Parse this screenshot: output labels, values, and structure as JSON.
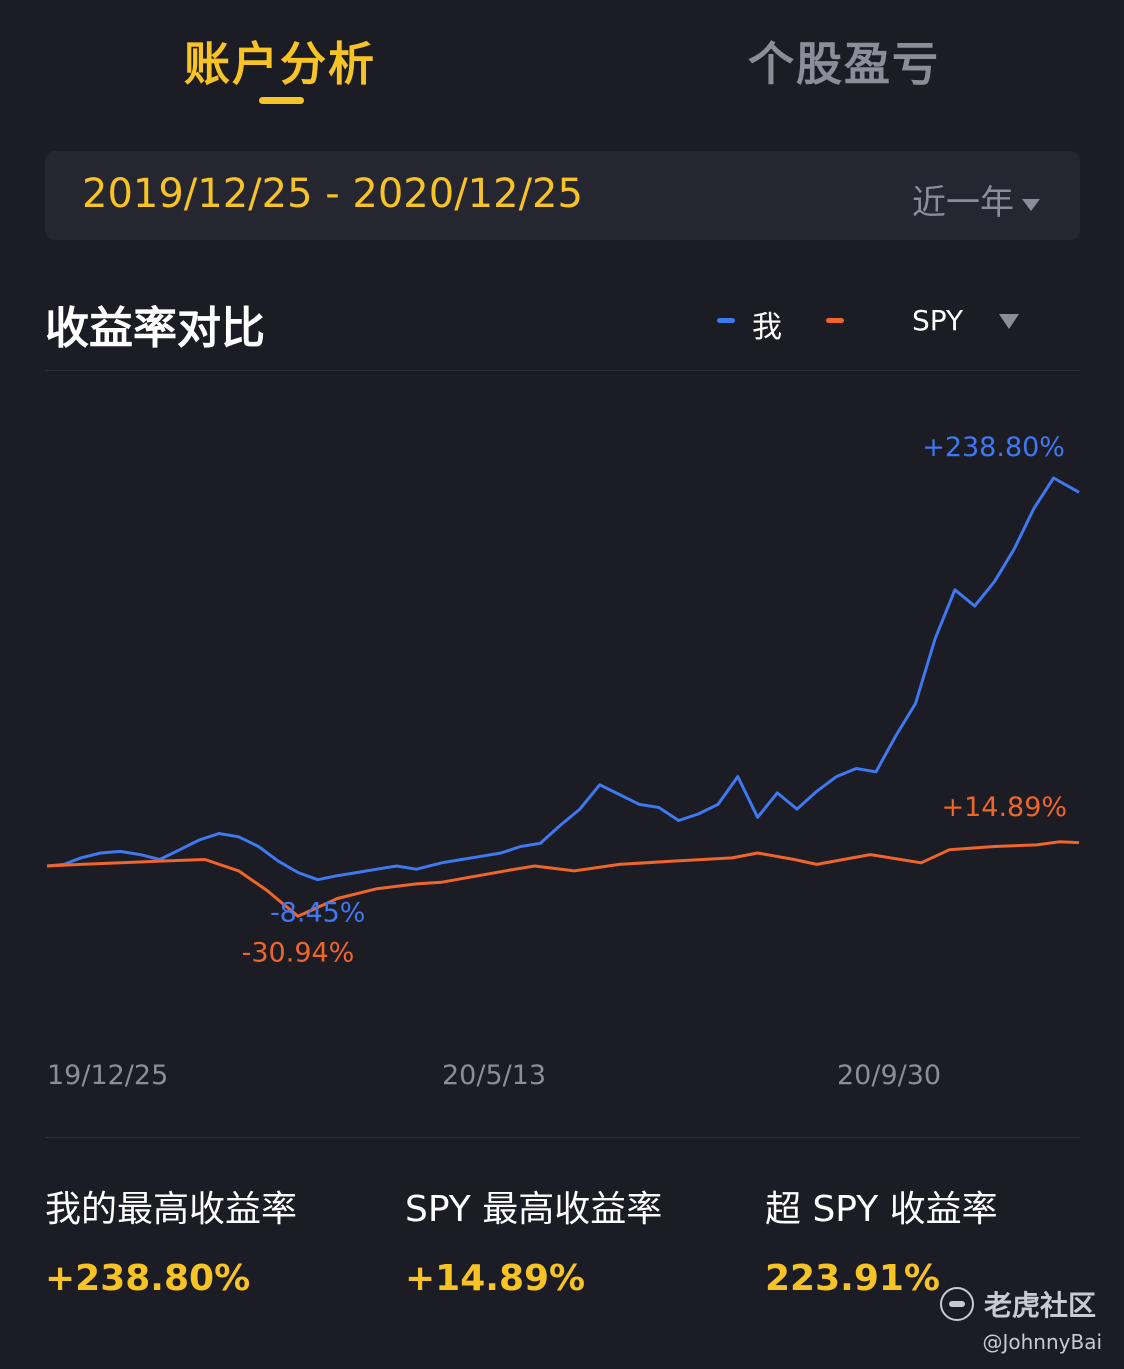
{
  "tabs": [
    {
      "label": "账户分析",
      "active": true
    },
    {
      "label": "个股盈亏",
      "active": false
    }
  ],
  "date_range": "2019/12/25 - 2020/12/25",
  "period": {
    "label": "近一年",
    "icon": "caret-down-icon"
  },
  "section_title": "收益率对比",
  "legend": {
    "me": {
      "label": "我",
      "color": "#3f78f0"
    },
    "spy": {
      "label": "SPY",
      "color": "#f0652a",
      "icon": "caret-down-icon"
    }
  },
  "colors": {
    "accent": "#f7c325",
    "me": "#3f78f0",
    "spy": "#f0652a",
    "muted": "#8b8d98"
  },
  "chart_data": {
    "type": "line",
    "x_range": [
      "2019-12-25",
      "2020-12-25"
    ],
    "ylim": [
      -35,
      260
    ],
    "grid": false,
    "x_ticks": [
      {
        "date": "2019-12-25",
        "label": "19/12/25"
      },
      {
        "date": "2020-05-13",
        "label": "20/5/13"
      },
      {
        "date": "2020-09-30",
        "label": "20/9/30"
      }
    ],
    "series": [
      {
        "name": "我",
        "color": "#3f78f0",
        "points": [
          [
            "2019-12-25",
            0
          ],
          [
            "2019-12-31",
            1
          ],
          [
            "2020-01-06",
            5
          ],
          [
            "2020-01-13",
            8
          ],
          [
            "2020-01-20",
            9
          ],
          [
            "2020-01-27",
            7
          ],
          [
            "2020-02-03",
            4
          ],
          [
            "2020-02-10",
            10
          ],
          [
            "2020-02-17",
            16
          ],
          [
            "2020-02-24",
            20
          ],
          [
            "2020-03-02",
            18
          ],
          [
            "2020-03-09",
            12
          ],
          [
            "2020-03-16",
            3
          ],
          [
            "2020-03-23",
            -4
          ],
          [
            "2020-03-30",
            -8.45
          ],
          [
            "2020-04-06",
            -6
          ],
          [
            "2020-04-13",
            -4
          ],
          [
            "2020-04-20",
            -2
          ],
          [
            "2020-04-27",
            0
          ],
          [
            "2020-05-04",
            -2
          ],
          [
            "2020-05-13",
            2
          ],
          [
            "2020-05-20",
            4
          ],
          [
            "2020-05-27",
            6
          ],
          [
            "2020-06-03",
            8
          ],
          [
            "2020-06-10",
            12
          ],
          [
            "2020-06-17",
            14
          ],
          [
            "2020-06-24",
            25
          ],
          [
            "2020-07-01",
            35
          ],
          [
            "2020-07-08",
            50
          ],
          [
            "2020-07-15",
            44
          ],
          [
            "2020-07-22",
            38
          ],
          [
            "2020-07-29",
            36
          ],
          [
            "2020-08-05",
            28
          ],
          [
            "2020-08-12",
            32
          ],
          [
            "2020-08-19",
            38
          ],
          [
            "2020-08-26",
            55
          ],
          [
            "2020-09-02",
            30
          ],
          [
            "2020-09-09",
            45
          ],
          [
            "2020-09-16",
            35
          ],
          [
            "2020-09-23",
            46
          ],
          [
            "2020-09-30",
            55
          ],
          [
            "2020-10-07",
            60
          ],
          [
            "2020-10-14",
            58
          ],
          [
            "2020-10-21",
            80
          ],
          [
            "2020-10-28",
            100
          ],
          [
            "2020-11-04",
            140
          ],
          [
            "2020-11-11",
            170
          ],
          [
            "2020-11-18",
            160
          ],
          [
            "2020-11-25",
            175
          ],
          [
            "2020-12-02",
            195
          ],
          [
            "2020-12-09",
            220
          ],
          [
            "2020-12-16",
            238.8
          ],
          [
            "2020-12-25",
            230
          ]
        ]
      },
      {
        "name": "SPY",
        "color": "#f0652a",
        "points": [
          [
            "2019-12-25",
            0
          ],
          [
            "2020-01-06",
            1
          ],
          [
            "2020-01-20",
            2
          ],
          [
            "2020-02-03",
            3
          ],
          [
            "2020-02-19",
            4
          ],
          [
            "2020-03-02",
            -3
          ],
          [
            "2020-03-12",
            -15
          ],
          [
            "2020-03-23",
            -30.94
          ],
          [
            "2020-04-06",
            -20
          ],
          [
            "2020-04-20",
            -14
          ],
          [
            "2020-05-04",
            -11
          ],
          [
            "2020-05-13",
            -10
          ],
          [
            "2020-06-08",
            -2
          ],
          [
            "2020-06-15",
            0
          ],
          [
            "2020-06-29",
            -3
          ],
          [
            "2020-07-15",
            1
          ],
          [
            "2020-08-03",
            3
          ],
          [
            "2020-08-24",
            5
          ],
          [
            "2020-09-02",
            8
          ],
          [
            "2020-09-15",
            4
          ],
          [
            "2020-09-23",
            1
          ],
          [
            "2020-10-12",
            7
          ],
          [
            "2020-10-30",
            2
          ],
          [
            "2020-11-09",
            10
          ],
          [
            "2020-11-25",
            12
          ],
          [
            "2020-12-10",
            13
          ],
          [
            "2020-12-18",
            14.89
          ],
          [
            "2020-12-25",
            14.4
          ]
        ]
      }
    ],
    "annotations": [
      {
        "text": "+238.80%",
        "series": "我",
        "date": "2020-12-16",
        "value": 238.8
      },
      {
        "text": "-8.45%",
        "series": "我",
        "date": "2020-03-30",
        "value": -8.45
      },
      {
        "text": "+14.89%",
        "series": "SPY",
        "date": "2020-12-18",
        "value": 14.89
      },
      {
        "text": "-30.94%",
        "series": "SPY",
        "date": "2020-03-23",
        "value": -30.94
      }
    ]
  },
  "stats": [
    {
      "label": "我的最高收益率",
      "value": "+238.80%"
    },
    {
      "label": "SPY 最高收益率",
      "value": "+14.89%"
    },
    {
      "label": "超 SPY 收益率",
      "value": "223.91%"
    }
  ],
  "watermark": {
    "brand": "老虎社区",
    "user": "@JohnnyBai",
    "icon": "tiger-logo-icon"
  }
}
